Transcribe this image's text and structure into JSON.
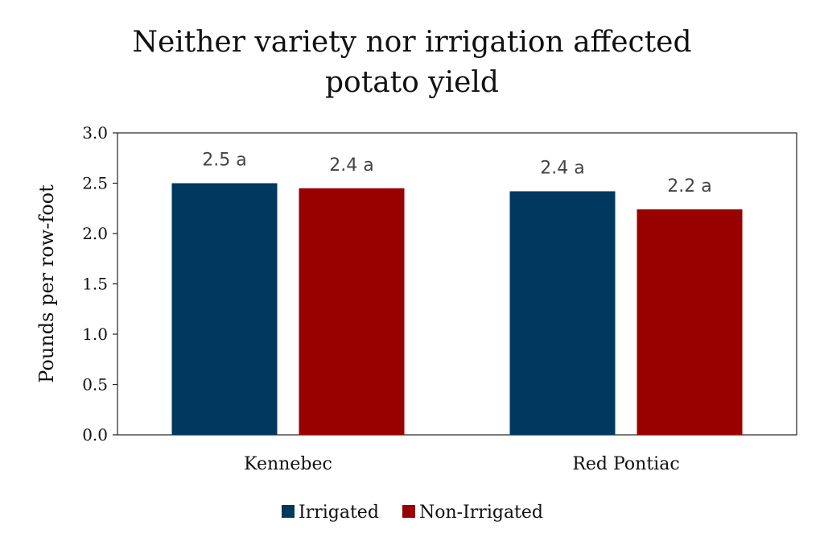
{
  "chart_data": {
    "type": "bar",
    "title": "Neither variety nor irrigation affected potato yield",
    "xlabel": "",
    "ylabel": "Pounds per row-foot",
    "categories": [
      "Kennebec",
      "Red Pontiac"
    ],
    "series": [
      {
        "name": "Irrigated",
        "color": "#00385f",
        "values": [
          2.5,
          2.42
        ],
        "labels": [
          "2.5 a",
          "2.4 a"
        ]
      },
      {
        "name": "Non-Irrigated",
        "color": "#990000",
        "values": [
          2.45,
          2.24
        ],
        "labels": [
          "2.4 a",
          "2.2 a"
        ]
      }
    ],
    "ylim": [
      0,
      3.0
    ],
    "yticks": [
      "0.0",
      "0.5",
      "1.0",
      "1.5",
      "2.0",
      "2.5",
      "3.0"
    ],
    "grid": false,
    "legend_position": "bottom"
  }
}
